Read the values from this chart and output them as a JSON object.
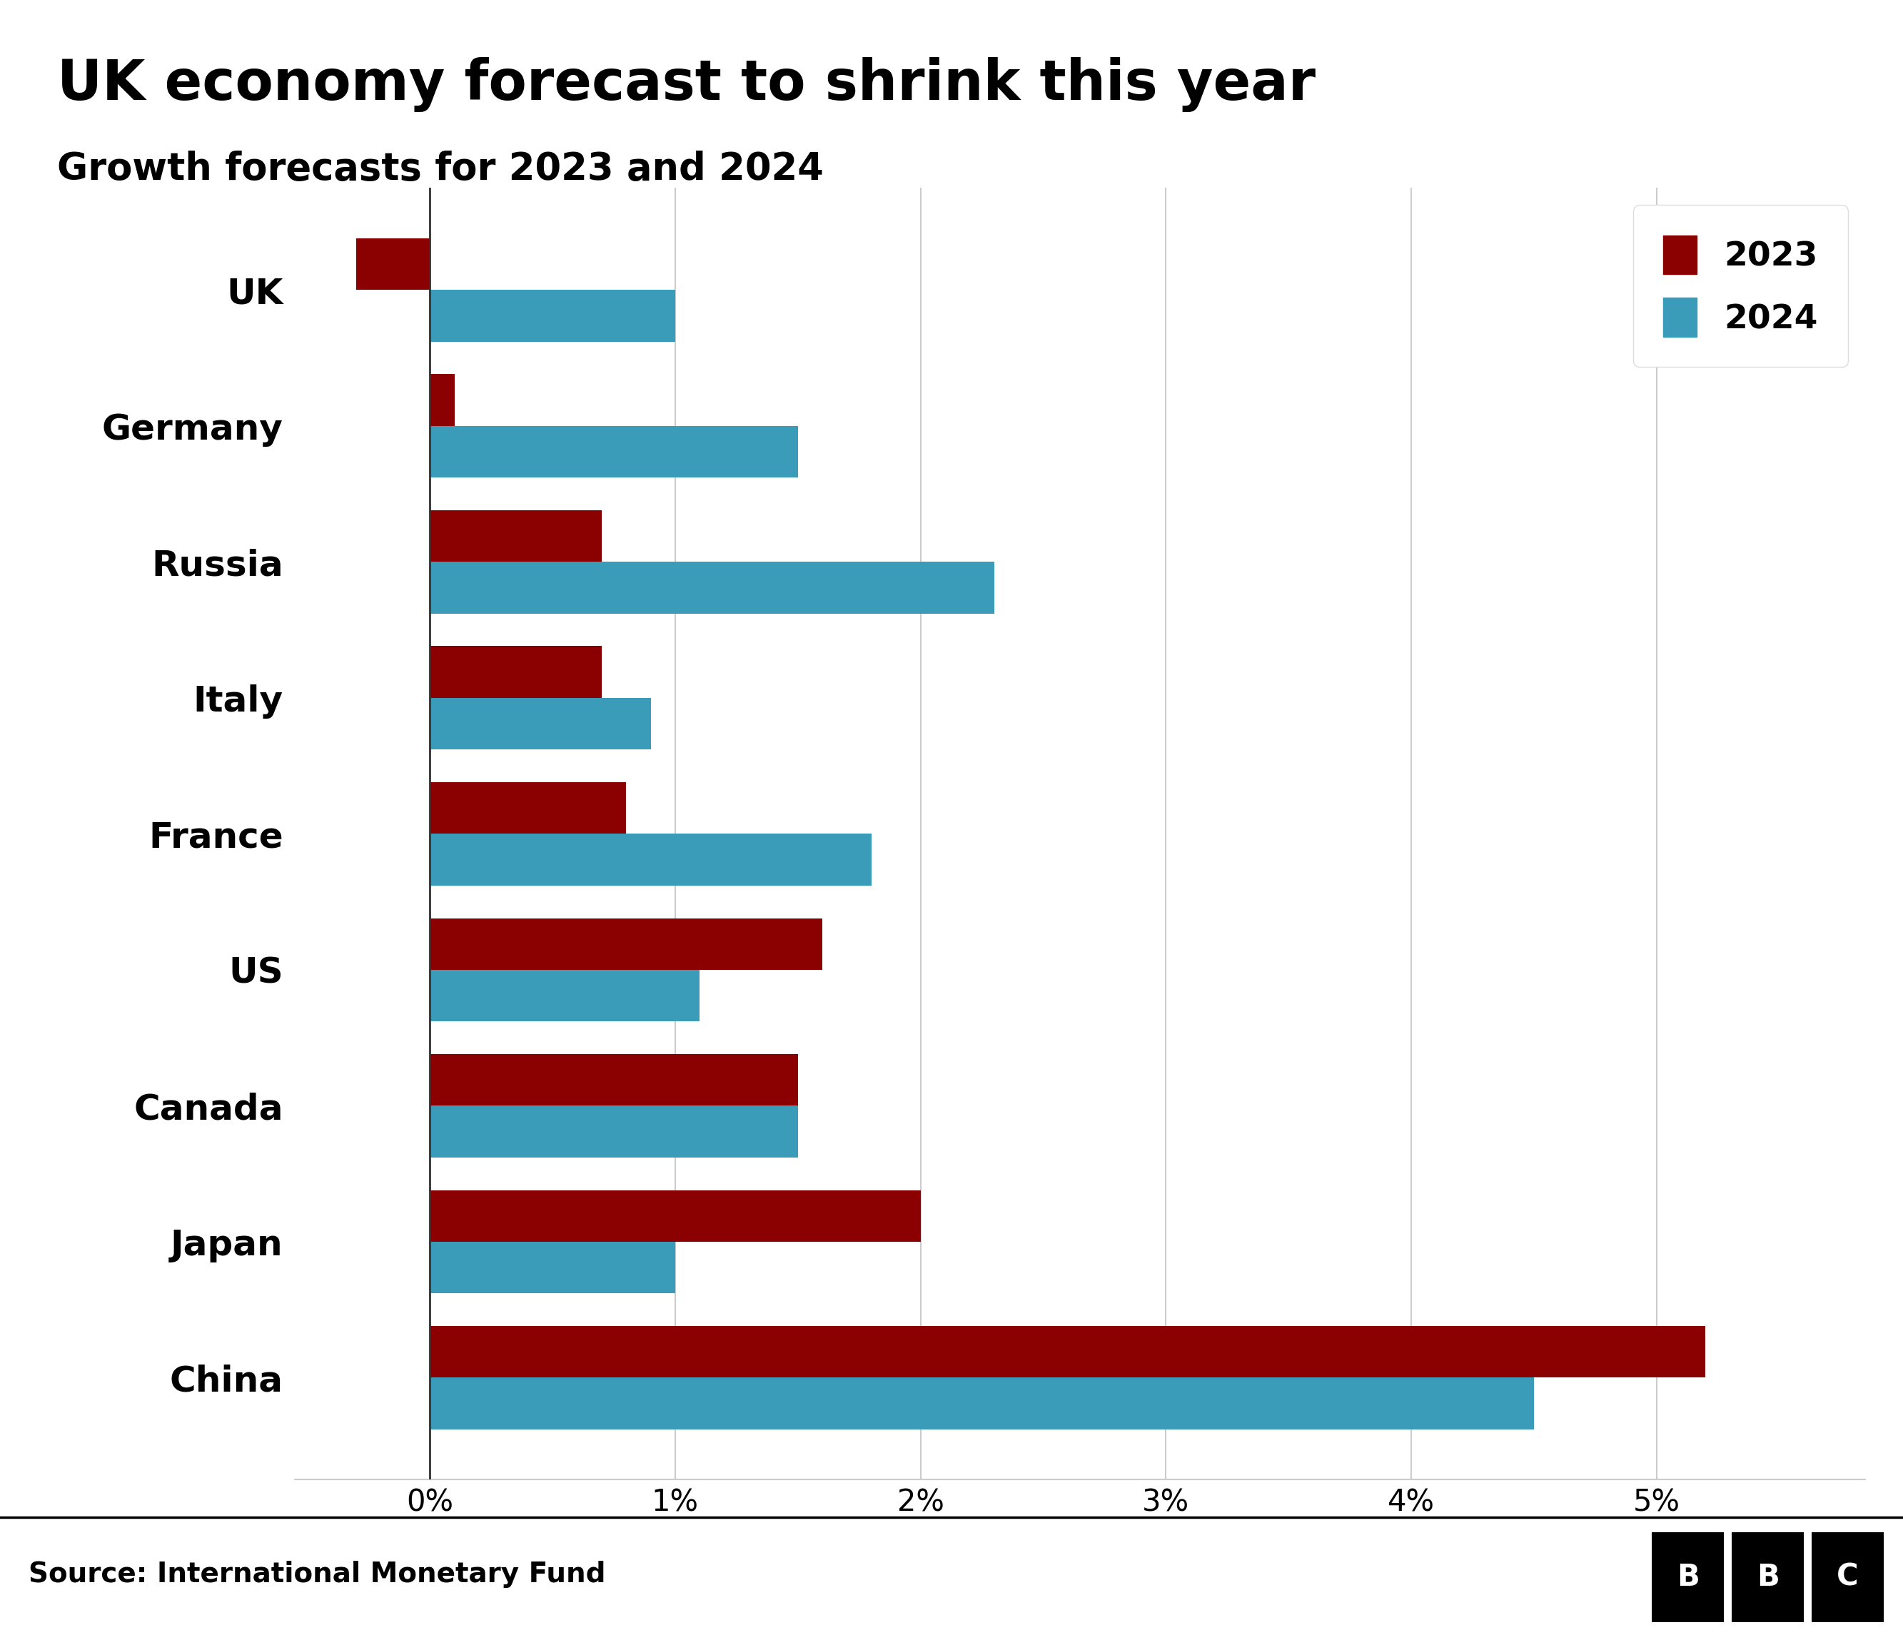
{
  "title": "UK economy forecast to shrink this year",
  "subtitle": "Growth forecasts for 2023 and 2024",
  "source": "Source: International Monetary Fund",
  "countries": [
    "UK",
    "Germany",
    "Russia",
    "Italy",
    "France",
    "US",
    "Canada",
    "Japan",
    "China"
  ],
  "values_2023": [
    -0.3,
    0.1,
    0.7,
    0.7,
    0.8,
    1.6,
    1.5,
    2.0,
    5.2
  ],
  "values_2024": [
    1.0,
    1.5,
    2.3,
    0.9,
    1.8,
    1.1,
    1.5,
    1.0,
    4.5
  ],
  "color_2023": "#8B0000",
  "color_2024": "#3A9CB8",
  "background_color": "#ffffff",
  "xlim": [
    -0.55,
    5.85
  ],
  "xticks": [
    0,
    1,
    2,
    3,
    4,
    5
  ],
  "xticklabels": [
    "0%",
    "1%",
    "2%",
    "3%",
    "4%",
    "5%"
  ],
  "title_fontsize": 56,
  "subtitle_fontsize": 38,
  "tick_fontsize": 30,
  "ytick_fontsize": 36,
  "legend_fontsize": 34,
  "source_fontsize": 28,
  "bar_height": 0.38
}
